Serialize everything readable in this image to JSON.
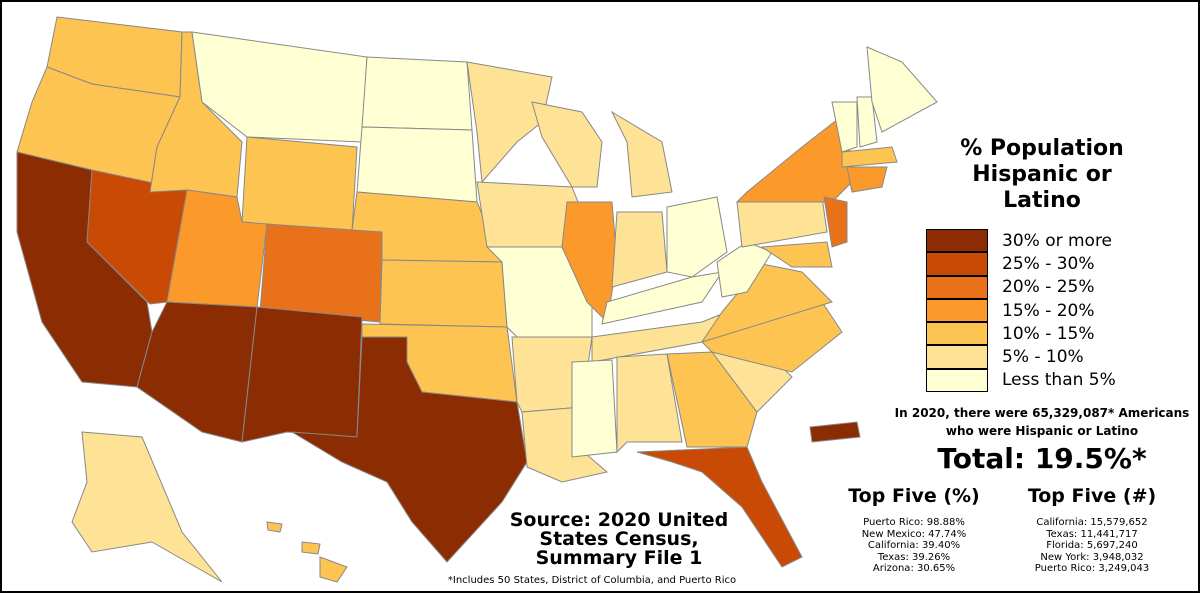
{
  "title": "% Population Hispanic or Latino",
  "legend": [
    {
      "label": "30% or more",
      "color": "#8b2c02"
    },
    {
      "label": "25% - 30%",
      "color": "#c94a04"
    },
    {
      "label": "20% - 25%",
      "color": "#e8711a"
    },
    {
      "label": "15% - 20%",
      "color": "#fb9a2a"
    },
    {
      "label": "10% - 15%",
      "color": "#fec452"
    },
    {
      "label": "5% - 10%",
      "color": "#fee396"
    },
    {
      "label": "Less than 5%",
      "color": "#ffffd4"
    }
  ],
  "note": "In 2020, there were 65,329,087* Americans who were Hispanic or Latino",
  "total": "Total: 19.5%*",
  "top_five_percent": {
    "title": "Top Five (%)",
    "items": [
      "Puerto Rico: 98.88%",
      "New Mexico: 47.74%",
      "California: 39.40%",
      "Texas: 39.26%",
      "Arizona: 30.65%"
    ]
  },
  "top_five_number": {
    "title": "Top Five (#)",
    "items": [
      "California: 15,579,652",
      "Texas: 11,441,717",
      "Florida: 5,697,240",
      "New York: 3,948,032",
      "Puerto Rico: 3,249,043"
    ]
  },
  "source": "Source: 2020 United States Census, Summary File 1",
  "footnote": "*Includes 50 States, District of Columbia, and Puerto Rico"
}
